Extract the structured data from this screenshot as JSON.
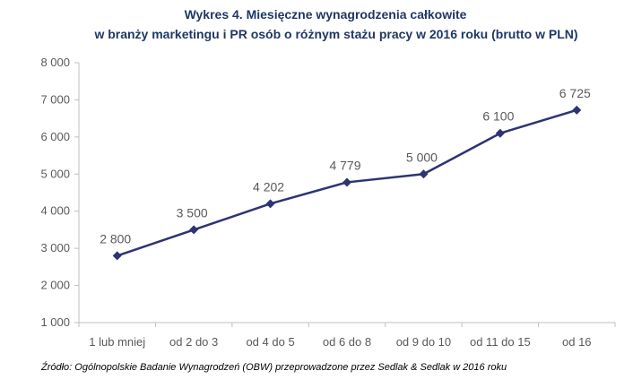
{
  "chart_data": {
    "type": "line",
    "title_line1": "Wykres 4. Miesięczne wynagrodzenia całkowite",
    "title_line2": "w branży marketingu i PR osób o różnym stażu pracy w 2016 roku (brutto w PLN)",
    "categories": [
      "1 lub mniej",
      "od 2 do 3",
      "od 4 do 5",
      "od 6 do 8",
      "od 9 do 10",
      "od 11 do 15",
      "od 16"
    ],
    "values": [
      2800,
      3500,
      4202,
      4779,
      5000,
      6100,
      6725
    ],
    "data_labels": [
      "2 800",
      "3 500",
      "4 202",
      "4 779",
      "5 000",
      "6 100",
      "6 725"
    ],
    "y_ticks": [
      1000,
      2000,
      3000,
      4000,
      5000,
      6000,
      7000,
      8000
    ],
    "y_tick_labels": [
      "1 000",
      "2 000",
      "3 000",
      "4 000",
      "5 000",
      "6 000",
      "7 000",
      "8 000"
    ],
    "ylim": [
      1000,
      8000
    ],
    "xlabel": "",
    "ylabel": "",
    "grid": false,
    "legend": "none",
    "line_color": "#2e3374",
    "source": "Źródło: Ogólnopolskie Badanie Wynagrodzeń (OBW) przeprowadzone  przez Sedlak & Sedlak w 2016 roku"
  }
}
